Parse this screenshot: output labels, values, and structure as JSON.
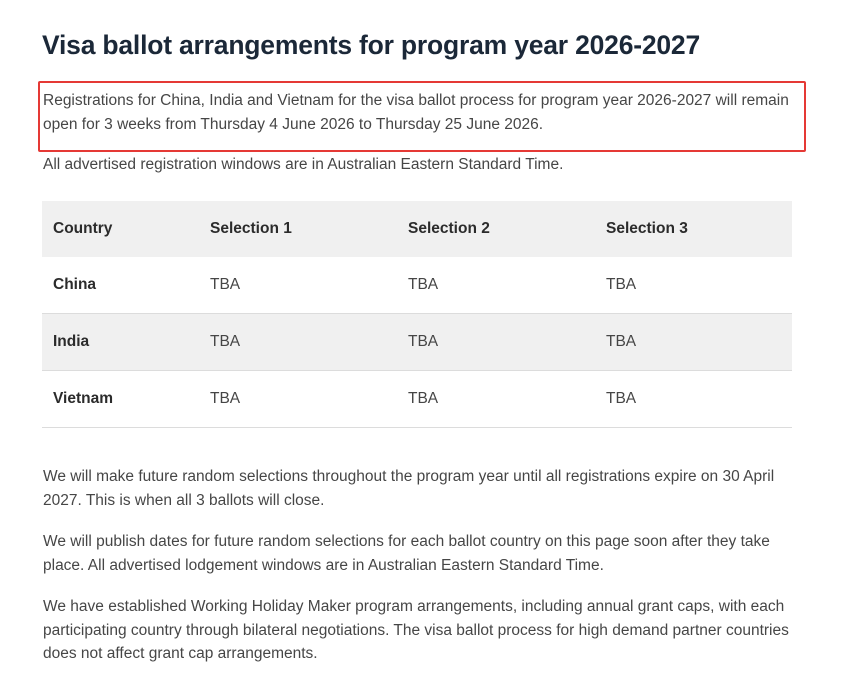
{
  "header": {
    "title": "Visa ballot arrangements for program year 2026-2027"
  },
  "highlight": "Registrations for China, India and Vietnam for the visa ballot process for program year 2026-2027 will remain open for 3 weeks from Thursday 4 June 2026 to Thursday 25 June 2026.",
  "note": "All advertised registration windows are in Australian Eastern Standard Time.",
  "table": {
    "headers": [
      "Country",
      "Selection 1",
      "Selection 2",
      "Selection 3"
    ],
    "rows": [
      [
        "China",
        "TBA",
        "TBA",
        "TBA"
      ],
      [
        "India",
        "TBA",
        "TBA",
        "TBA"
      ],
      [
        "Vietnam",
        "TBA",
        "TBA",
        "TBA"
      ]
    ]
  },
  "paragraphs": [
    "We will make future random selections throughout the program year until all registrations expire on 30 April 2027. This is when all 3 ballots will close.",
    "We will publish dates for future random selections for each ballot country on this page soon after they take place. All advertised lodgement windows are in Australian Eastern Standard Time.",
    "We have established Working Holiday Maker program arrangements, including annual grant caps, with each participating country through bilateral negotiations. The visa ballot process for high demand partner countries does not affect grant cap arrangements."
  ]
}
